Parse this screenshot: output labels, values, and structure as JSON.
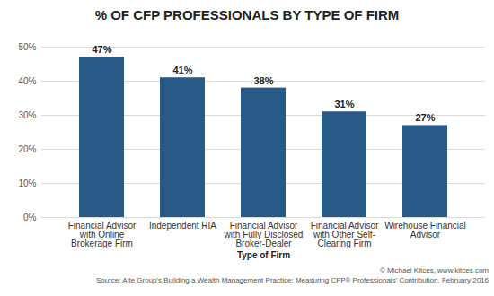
{
  "chart_data": {
    "type": "bar",
    "title": "% OF CFP PROFESSIONALS BY TYPE OF FIRM",
    "x_label": "Type of Firm",
    "categories": [
      "Financial Advisor with Online Brokerage Firm",
      "Independent RIA",
      "Financial Advisor with Fully Disclosed Broker-Dealer",
      "Financial Advisor with Other Self-Clearing Firm",
      "Wirehouse Financial Advisor"
    ],
    "values": [
      47,
      41,
      38,
      31,
      27
    ],
    "value_labels": [
      "47%",
      "41%",
      "38%",
      "31%",
      "27%"
    ],
    "color": "#285a87",
    "ylim": [
      0,
      50
    ],
    "yticks": [
      {
        "value": 0,
        "label": "0%"
      },
      {
        "value": 10,
        "label": "10%"
      },
      {
        "value": 20,
        "label": "20%"
      },
      {
        "value": 30,
        "label": "30%"
      },
      {
        "value": 40,
        "label": "40%"
      },
      {
        "value": 50,
        "label": "50%"
      }
    ],
    "grid": true,
    "data_labels": true,
    "annotations": [
      "© Michael Kitces, www.kitces.com",
      "Source: Aite Group's Building a Wealth Management Practice: Measuring CFP® Professionals' Contribution, February 2016"
    ]
  }
}
